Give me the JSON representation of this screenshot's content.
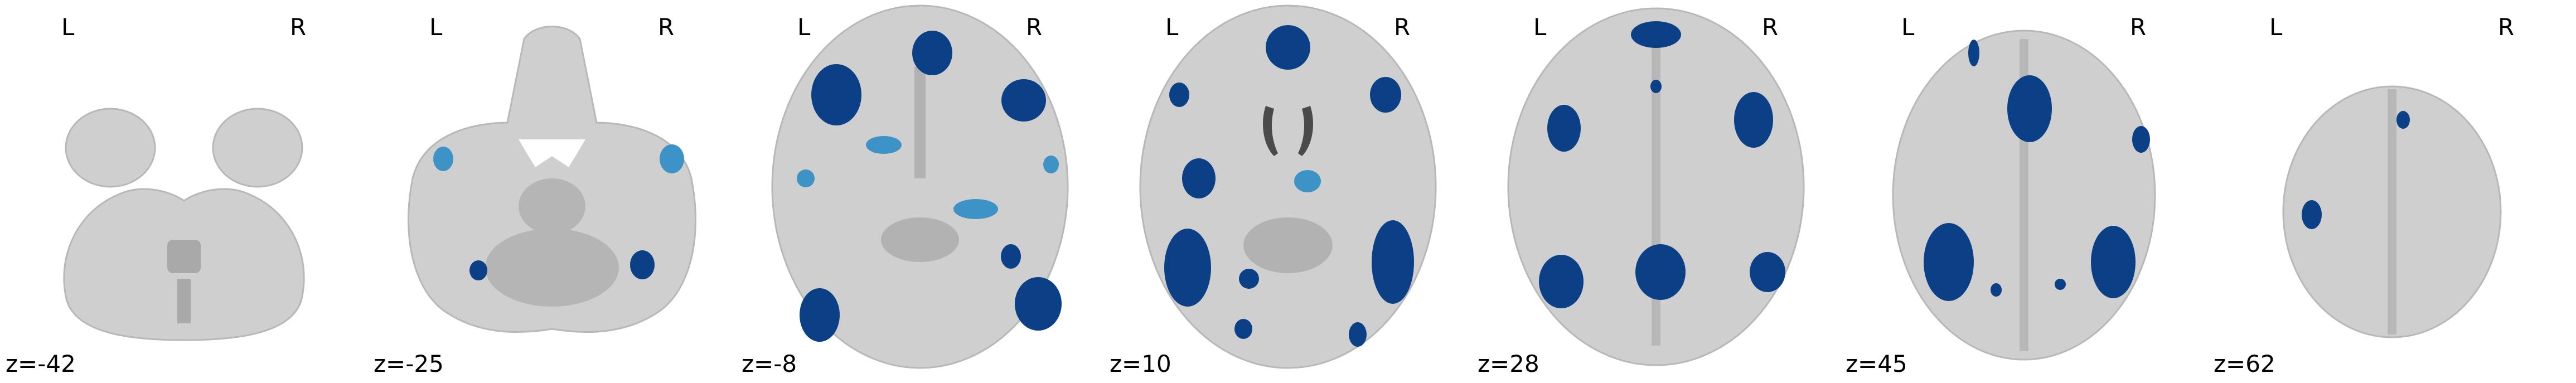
{
  "orientation": {
    "left": "L",
    "right": "R"
  },
  "colors": {
    "background": "#ffffff",
    "brain": "#cfcfcf",
    "cluster_dark": "#0b3f86",
    "cluster_light": "#3d92c6"
  },
  "slices": [
    {
      "label": "z=-42"
    },
    {
      "label": "z=-25"
    },
    {
      "label": "z=-8"
    },
    {
      "label": "z=10"
    },
    {
      "label": "z=28"
    },
    {
      "label": "z=45"
    },
    {
      "label": "z=62"
    }
  ]
}
